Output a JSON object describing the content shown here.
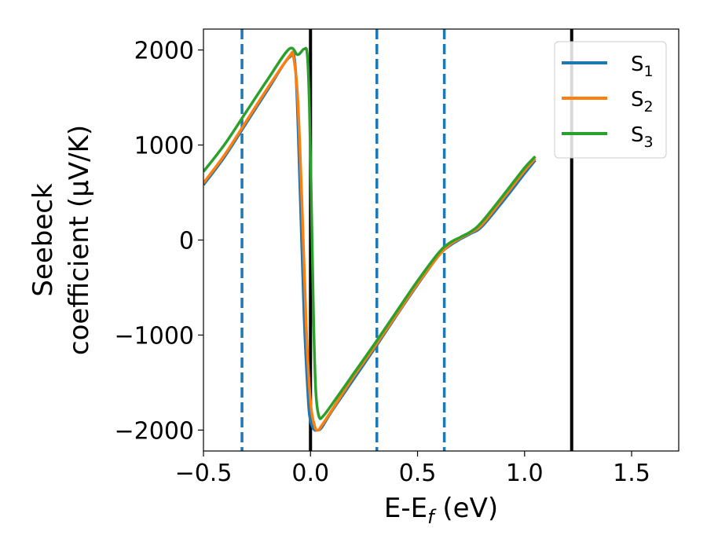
{
  "chart_data": {
    "type": "line",
    "xlabel": "E-E",
    "xlabel_sub": "f",
    "xlabel_unit": " (eV)",
    "ylabel_line1": "Seebeck",
    "ylabel_line2": "coefficient  (μV/K)",
    "xlim": [
      -0.5,
      1.72
    ],
    "ylim": [
      -2220,
      2220
    ],
    "x_ticks": [
      -0.5,
      0.0,
      0.5,
      1.0,
      1.5
    ],
    "x_tick_labels": [
      "−0.5",
      "0.0",
      "0.5",
      "1.0",
      "1.5"
    ],
    "y_ticks": [
      2000,
      1000,
      0,
      -1000,
      -2000
    ],
    "y_tick_labels": [
      "2000",
      "1000",
      "0",
      "−1000",
      "−2000"
    ],
    "grid": false,
    "legend_position": "top-right",
    "vertical_lines": [
      {
        "x": -0.32,
        "style": "dashed",
        "color": "#1f77b4"
      },
      {
        "x": 0.0,
        "style": "solid",
        "color": "#000000"
      },
      {
        "x": 0.31,
        "style": "dashed",
        "color": "#1f77b4"
      },
      {
        "x": 0.625,
        "style": "dashed",
        "color": "#1f77b4"
      },
      {
        "x": 1.22,
        "style": "solid",
        "color": "#000000"
      }
    ],
    "series": [
      {
        "name": "S",
        "sub": "1",
        "color": "#1f77b4",
        "x": [
          -0.5,
          -0.4,
          -0.3,
          -0.2,
          -0.1,
          -0.07,
          -0.05,
          -0.03,
          -0.01,
          0.0,
          0.01,
          0.02,
          0.03,
          0.05,
          0.1,
          0.2,
          0.3,
          0.4,
          0.5,
          0.6,
          0.65,
          0.7,
          0.75,
          0.8,
          0.9,
          1.0,
          1.05
        ],
        "y": [
          580,
          880,
          1230,
          1580,
          1920,
          1800,
          600,
          -800,
          -1700,
          -1900,
          -1970,
          -2000,
          -2000,
          -1980,
          -1800,
          -1470,
          -1140,
          -800,
          -470,
          -160,
          -60,
          10,
          70,
          140,
          410,
          700,
          840
        ]
      },
      {
        "name": "S",
        "sub": "2",
        "color": "#ff7f0e",
        "x": [
          -0.5,
          -0.4,
          -0.3,
          -0.2,
          -0.1,
          -0.08,
          -0.06,
          -0.04,
          -0.02,
          0.0,
          0.02,
          0.035,
          0.05,
          0.1,
          0.2,
          0.3,
          0.4,
          0.5,
          0.6,
          0.65,
          0.7,
          0.75,
          0.8,
          0.9,
          1.0,
          1.05
        ],
        "y": [
          600,
          900,
          1250,
          1600,
          1930,
          1930,
          1500,
          400,
          -900,
          -1700,
          -1960,
          -2000,
          -1960,
          -1790,
          -1440,
          -1120,
          -790,
          -460,
          -160,
          -50,
          20,
          80,
          160,
          440,
          730,
          860
        ]
      },
      {
        "name": "S",
        "sub": "3",
        "color": "#2ca02c",
        "x": [
          -0.5,
          -0.4,
          -0.3,
          -0.2,
          -0.1,
          -0.06,
          -0.03,
          -0.015,
          -0.005,
          0.005,
          0.015,
          0.025,
          0.04,
          0.06,
          0.1,
          0.2,
          0.3,
          0.4,
          0.5,
          0.6,
          0.65,
          0.7,
          0.75,
          0.8,
          0.9,
          1.0,
          1.05
        ],
        "y": [
          720,
          1010,
          1350,
          1690,
          2010,
          1950,
          2010,
          1950,
          1400,
          300,
          -900,
          -1600,
          -1860,
          -1850,
          -1730,
          -1410,
          -1090,
          -760,
          -430,
          -130,
          -30,
          30,
          90,
          190,
          470,
          760,
          880
        ]
      }
    ]
  }
}
